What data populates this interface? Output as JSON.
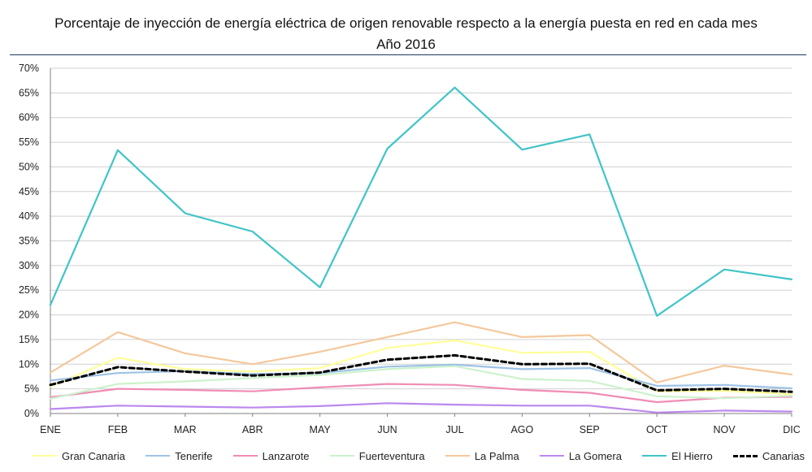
{
  "title": {
    "line1": "Porcentaje de inyección de energía eléctrica de origen renovable respecto a la energía puesta en red en cada mes",
    "line2": "Año 2016"
  },
  "chart_data": {
    "type": "line",
    "title": "Porcentaje de inyección de energía eléctrica de origen renovable respecto a la energía puesta en red en cada mes Año 2016",
    "xlabel": "",
    "ylabel": "",
    "categories": [
      "ENE",
      "FEB",
      "MAR",
      "ABR",
      "MAY",
      "JUN",
      "JUL",
      "AGO",
      "SEP",
      "OCT",
      "NOV",
      "DIC"
    ],
    "ylim": [
      0,
      70
    ],
    "yticks": [
      "0%",
      "5%",
      "10%",
      "15%",
      "20%",
      "25%",
      "30%",
      "35%",
      "40%",
      "45%",
      "50%",
      "55%",
      "60%",
      "65%",
      "70%"
    ],
    "grid": true,
    "legend_position": "bottom",
    "series": [
      {
        "name": "Gran Canaria",
        "color": "#ffff99",
        "dashed": false,
        "values": [
          5.5,
          11.3,
          9.0,
          8.5,
          9.2,
          13.3,
          14.8,
          12.3,
          12.5,
          4.5,
          4.6,
          3.9
        ]
      },
      {
        "name": "Tenerife",
        "color": "#9dc3e6",
        "dashed": false,
        "values": [
          6.7,
          8.2,
          8.6,
          8.0,
          8.2,
          9.5,
          9.9,
          9.0,
          9.2,
          5.6,
          5.8,
          5.1
        ]
      },
      {
        "name": "Lanzarote",
        "color": "#f08cb4",
        "dashed": false,
        "values": [
          3.3,
          5.0,
          4.8,
          4.5,
          5.3,
          6.0,
          5.8,
          4.8,
          4.2,
          2.3,
          3.2,
          3.4
        ]
      },
      {
        "name": "Fuerteventura",
        "color": "#ccf2cc",
        "dashed": false,
        "values": [
          3.0,
          6.0,
          6.5,
          7.2,
          7.8,
          9.0,
          9.6,
          7.0,
          6.6,
          3.5,
          3.1,
          3.6
        ]
      },
      {
        "name": "La Palma",
        "color": "#f4c89c",
        "dashed": false,
        "values": [
          8.3,
          16.5,
          12.2,
          10.0,
          12.5,
          15.5,
          18.5,
          15.5,
          15.9,
          6.3,
          9.7,
          7.9
        ]
      },
      {
        "name": "La Gomera",
        "color": "#bb88ee",
        "dashed": false,
        "values": [
          0.9,
          1.6,
          1.4,
          1.2,
          1.5,
          2.1,
          1.8,
          1.6,
          1.6,
          0.2,
          0.6,
          0.4
        ]
      },
      {
        "name": "El Hierro",
        "color": "#40c4c8",
        "dashed": false,
        "values": [
          22.0,
          53.4,
          40.6,
          36.9,
          25.6,
          53.7,
          66.1,
          53.5,
          56.6,
          19.8,
          29.2,
          27.2
        ]
      },
      {
        "name": "Canarias",
        "color": "#000000",
        "dashed": true,
        "values": [
          5.8,
          9.4,
          8.5,
          7.7,
          8.3,
          10.9,
          11.8,
          10.0,
          10.1,
          4.7,
          5.0,
          4.4
        ]
      }
    ]
  }
}
